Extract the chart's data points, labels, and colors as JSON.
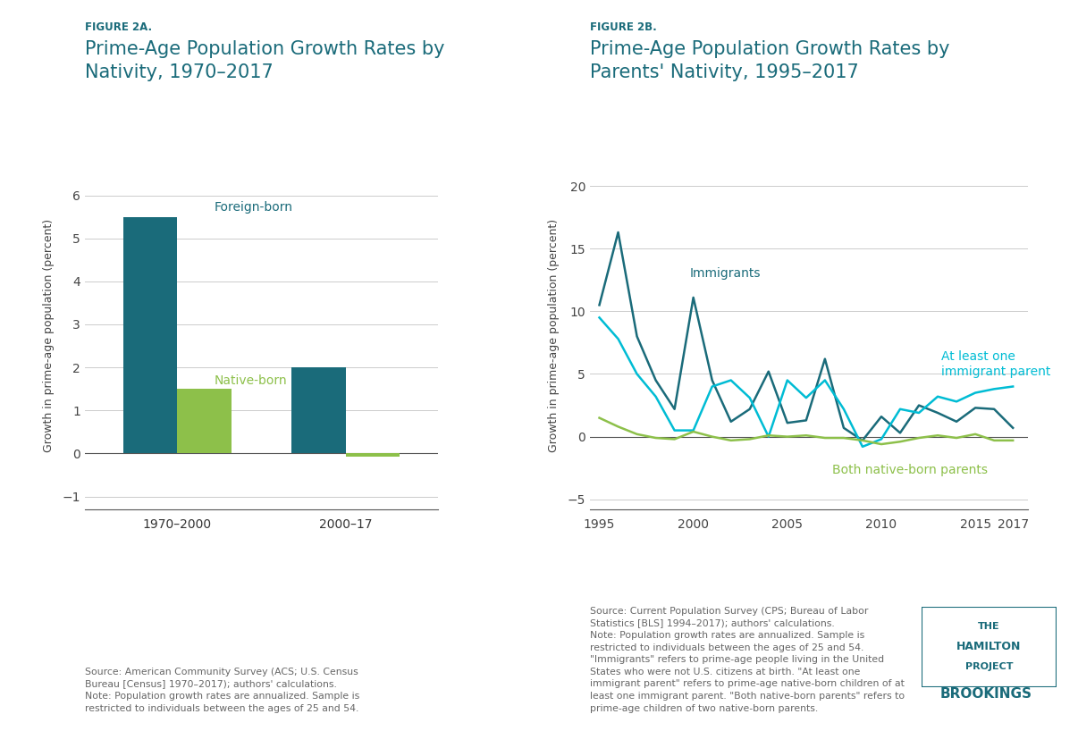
{
  "fig2a": {
    "title_label": "FIGURE 2A.",
    "title": "Prime-Age Population Growth Rates by\nNativity, 1970–2017",
    "categories": [
      "1970–2000",
      "2000–17"
    ],
    "foreign_born": [
      5.5,
      2.0
    ],
    "native_born": [
      1.5,
      -0.07
    ],
    "bar_color_foreign": "#1a6b7a",
    "bar_color_native": "#8dc04a",
    "ylabel": "Growth in prime-age population (percent)",
    "ylim": [
      -1.3,
      6.8
    ],
    "yticks": [
      -1,
      0,
      1,
      2,
      3,
      4,
      5,
      6
    ],
    "source_text": "Source: American Community Survey (ACS; U.S. Census\nBureau [Census] 1970–2017); authors' calculations.\nNote: Population growth rates are annualized. Sample is\nrestricted to individuals between the ages of 25 and 54.",
    "label_foreign": "Foreign-born",
    "label_native": "Native-born"
  },
  "fig2b": {
    "title_label": "FIGURE 2B.",
    "title": "Prime-Age Population Growth Rates by\nParents' Nativity, 1995–2017",
    "ylabel": "Growth in prime-age population (percent)",
    "ylim": [
      -5.8,
      22
    ],
    "yticks": [
      -5,
      0,
      5,
      10,
      15,
      20
    ],
    "years": [
      1995,
      1996,
      1997,
      1998,
      1999,
      2000,
      2001,
      2002,
      2003,
      2004,
      2005,
      2006,
      2007,
      2008,
      2009,
      2010,
      2011,
      2012,
      2013,
      2014,
      2015,
      2016,
      2017
    ],
    "immigrants": [
      10.5,
      16.3,
      8.0,
      4.5,
      2.2,
      11.1,
      4.5,
      1.2,
      2.2,
      5.2,
      1.1,
      1.3,
      6.2,
      0.7,
      -0.3,
      1.6,
      0.3,
      2.5,
      1.9,
      1.2,
      2.3,
      2.2,
      0.7
    ],
    "at_least_one": [
      9.5,
      7.8,
      5.0,
      3.2,
      0.5,
      0.5,
      4.0,
      4.5,
      3.1,
      0.0,
      4.5,
      3.1,
      4.5,
      2.2,
      -0.8,
      -0.2,
      2.2,
      1.9,
      3.2,
      2.8,
      3.5,
      3.8,
      4.0
    ],
    "both_native": [
      1.5,
      0.8,
      0.2,
      -0.1,
      -0.2,
      0.4,
      0.0,
      -0.3,
      -0.2,
      0.1,
      0.0,
      0.1,
      -0.1,
      -0.1,
      -0.3,
      -0.6,
      -0.4,
      -0.1,
      0.1,
      -0.1,
      0.2,
      -0.3,
      -0.3
    ],
    "color_immigrants": "#1a6b7a",
    "color_at_least_one": "#00bcd4",
    "color_both_native": "#8dc04a",
    "label_immigrants": "Immigrants",
    "label_at_least_one": "At least one\nimmigrant parent",
    "label_both_native": "Both native-born parents",
    "source_text": "Source: Current Population Survey (CPS; Bureau of Labor\nStatistics [BLS] 1994–2017); authors' calculations.\nNote: Population growth rates are annualized. Sample is\nrestricted to individuals between the ages of 25 and 54.\n\"Immigrants\" refers to prime-age people living in the United\nStates who were not U.S. citizens at birth. \"At least one\nimmigrant parent\" refers to prime-age native-born children of at\nleast one immigrant parent. \"Both native-born parents\" refers to\nprime-age children of two native-born parents."
  },
  "teal_color": "#1a6b7a",
  "figure_label_color": "#1a6b7a",
  "title_color": "#1a6b7a",
  "background_color": "#ffffff",
  "grid_color": "#cccccc",
  "source_color": "#666666"
}
